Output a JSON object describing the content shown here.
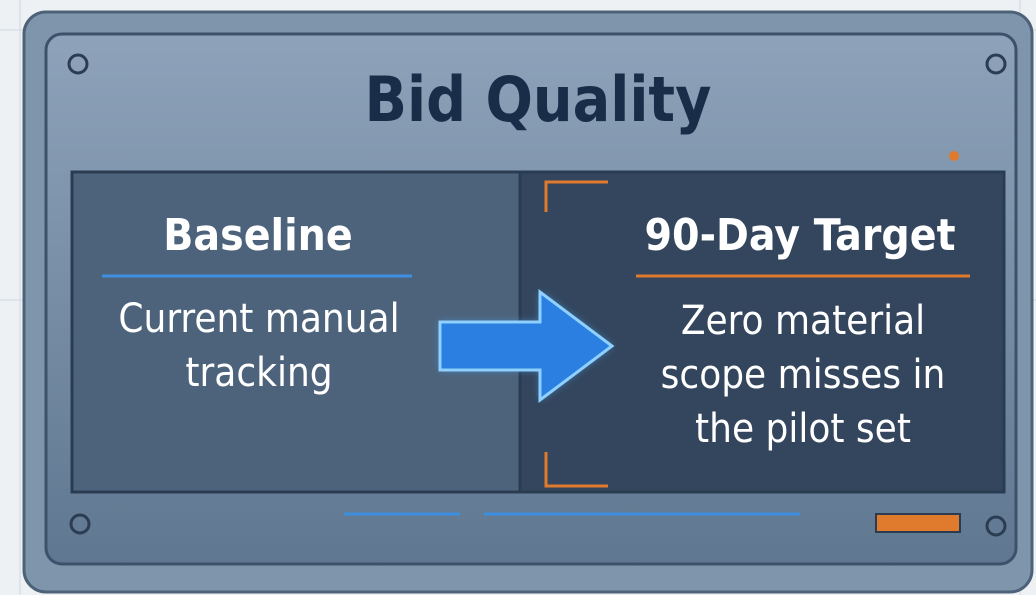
{
  "title": "Bid Quality",
  "baseline": {
    "heading": "Baseline",
    "text": "Current manual tracking"
  },
  "target": {
    "heading": "90-Day Target",
    "text": "Zero material scope misses in the pilot set"
  }
}
